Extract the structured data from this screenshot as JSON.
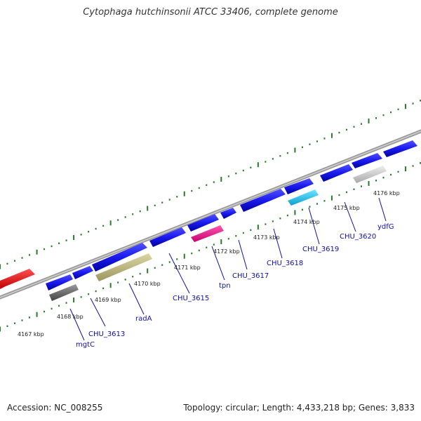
{
  "title": "Cytophaga hutchinsonii ATCC 33406, complete genome",
  "footer": {
    "accession": "Accession: NC_008255",
    "info": "Topology: circular; Length: 4,433,218 bp; Genes: 3,833"
  },
  "kbp_ticks": [
    {
      "label": "4167 kbp"
    },
    {
      "label": "4168 kbp"
    },
    {
      "label": "4169 kbp"
    },
    {
      "label": "4170 kbp"
    },
    {
      "label": "4171 kbp"
    },
    {
      "label": "4172 kbp"
    },
    {
      "label": "4173 kbp"
    },
    {
      "label": "4174 kbp"
    },
    {
      "label": "4175 kbp"
    },
    {
      "label": "4176 kbp"
    }
  ],
  "genes": [
    {
      "name": "mgtC",
      "color": "#6e6e6e"
    },
    {
      "name": "CHU_3613",
      "color": "#0000ff"
    },
    {
      "name": "radA",
      "color": "#c8c080"
    },
    {
      "name": "CHU_3615",
      "color": "#0000ff"
    },
    {
      "name": "tpn",
      "color": "#ff1493"
    },
    {
      "name": "CHU_3617",
      "color": "#0000ff"
    },
    {
      "name": "CHU_3618",
      "color": "#0000ff"
    },
    {
      "name": "CHU_3619",
      "color": "#1ec8f0"
    },
    {
      "name": "CHU_3620",
      "color": "#0000ff"
    },
    {
      "name": "ydfG",
      "color": "#c0c0c0"
    }
  ],
  "colors": {
    "backbone": "#888888",
    "forward_gene": "#1a1aee",
    "rrna_red": "#ff0000",
    "tick_green": "#2a7a2a",
    "label_blue": "#1010a0"
  }
}
